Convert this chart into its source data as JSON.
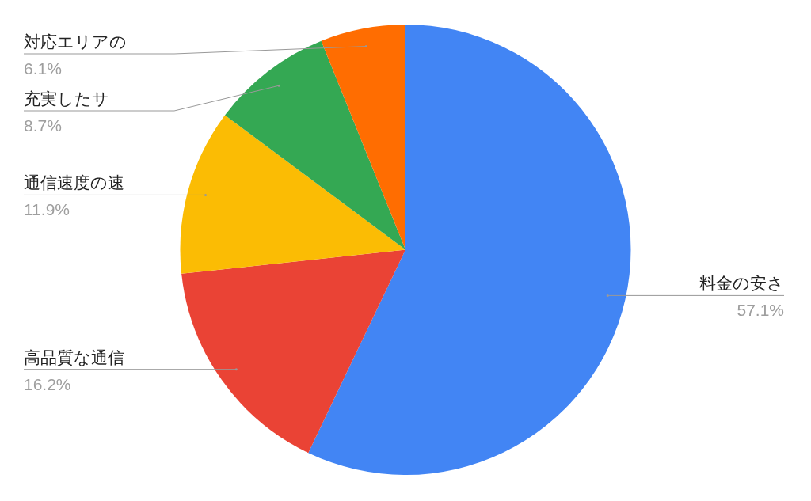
{
  "chart_data": {
    "type": "pie",
    "categories": [
      "料金の安さ",
      "高品質な通信",
      "通信速度の速",
      "充実したサ",
      "対応エリアの"
    ],
    "values": [
      57.1,
      16.2,
      11.9,
      8.7,
      6.1
    ],
    "colors": [
      "#4285f4",
      "#ea4335",
      "#fbbc04",
      "#34a853",
      "#ff6d01"
    ],
    "value_labels": [
      "57.1%",
      "16.2%",
      "11.9%",
      "8.7%",
      "6.1%"
    ],
    "legend": false
  }
}
